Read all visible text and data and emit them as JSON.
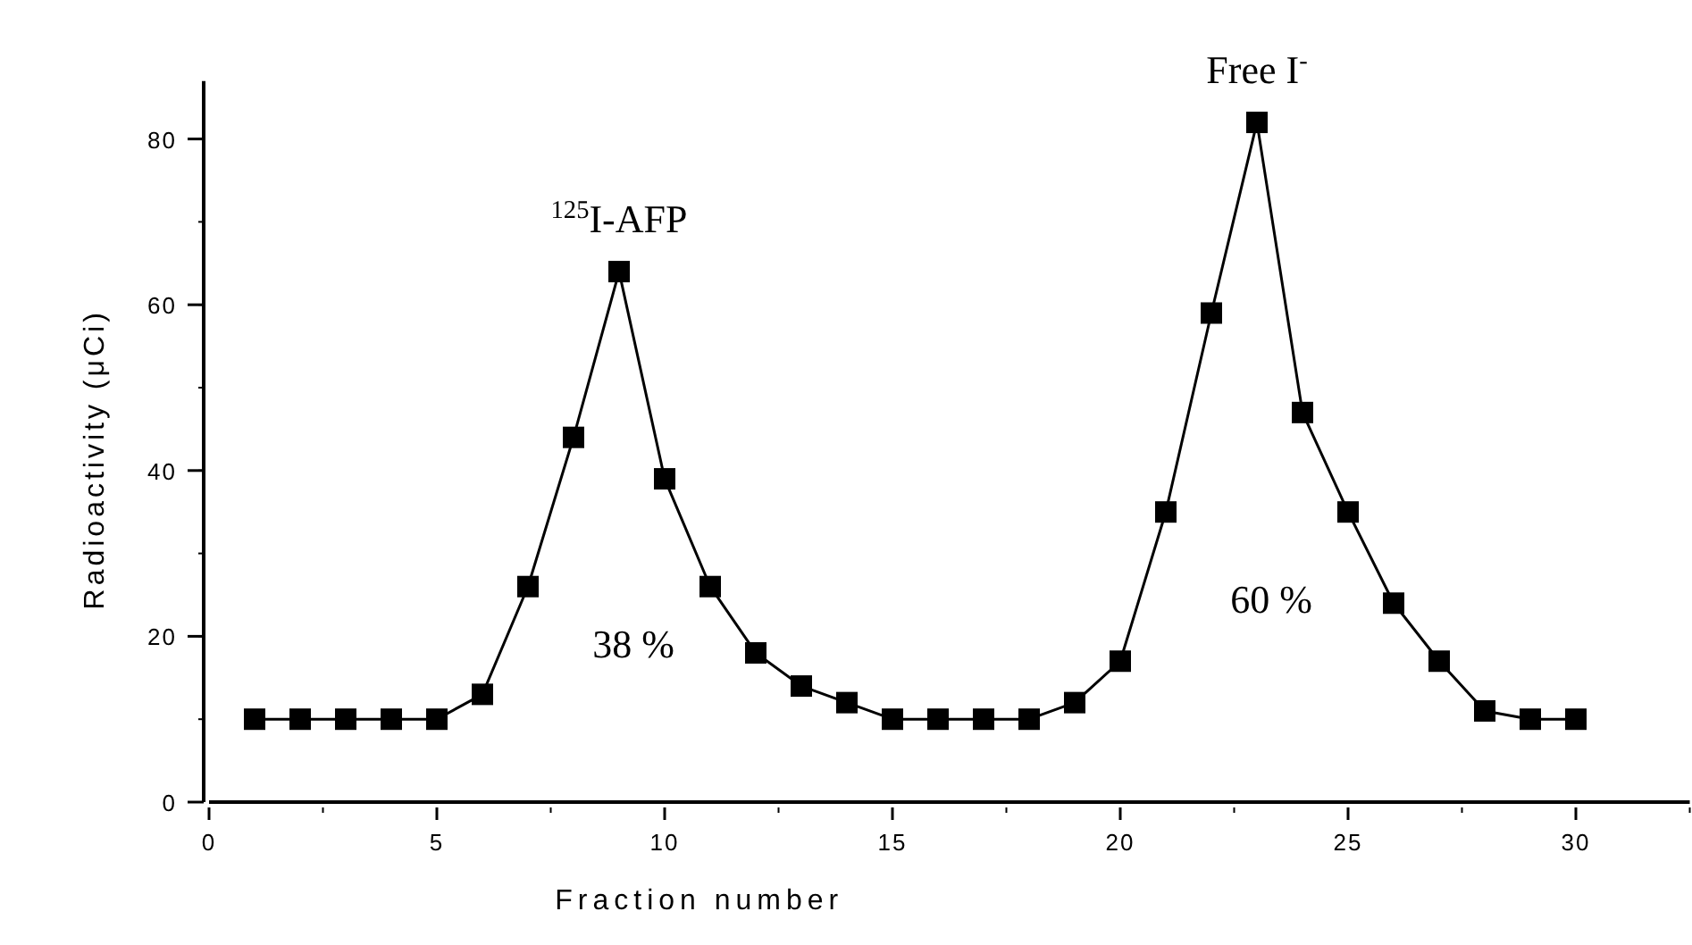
{
  "chart_data": {
    "type": "line",
    "xlabel": "Fraction number",
    "ylabel": "Radioactivity (μCi)",
    "x": [
      1,
      2,
      3,
      4,
      5,
      6,
      7,
      8,
      9,
      10,
      11,
      12,
      13,
      14,
      15,
      16,
      17,
      18,
      19,
      20,
      21,
      22,
      23,
      24,
      25,
      26,
      27,
      28,
      29,
      30
    ],
    "series": [
      {
        "color": "#000000",
        "values": [
          10,
          10,
          10,
          10,
          10,
          13,
          26,
          44,
          64,
          39,
          26,
          18,
          14,
          12,
          10,
          10,
          10,
          10,
          12,
          17,
          35,
          59,
          82,
          47,
          35,
          24,
          17,
          11,
          10,
          10
        ]
      }
    ],
    "xlim": [
      0,
      32.5
    ],
    "xticks": [
      0,
      5,
      10,
      15,
      20,
      25,
      30
    ],
    "ylim": [
      0,
      87
    ],
    "yticks": [
      0,
      20,
      40,
      60,
      80
    ],
    "marker": "square",
    "line_style": "solid",
    "grid": false,
    "annotations": [
      {
        "text": "$^{125}$I-AFP",
        "x": 9,
        "y": 64
      },
      {
        "text": "Free I$^{-}$",
        "x": 23,
        "y": 82
      },
      "38 %",
      "60 %"
    ]
  }
}
